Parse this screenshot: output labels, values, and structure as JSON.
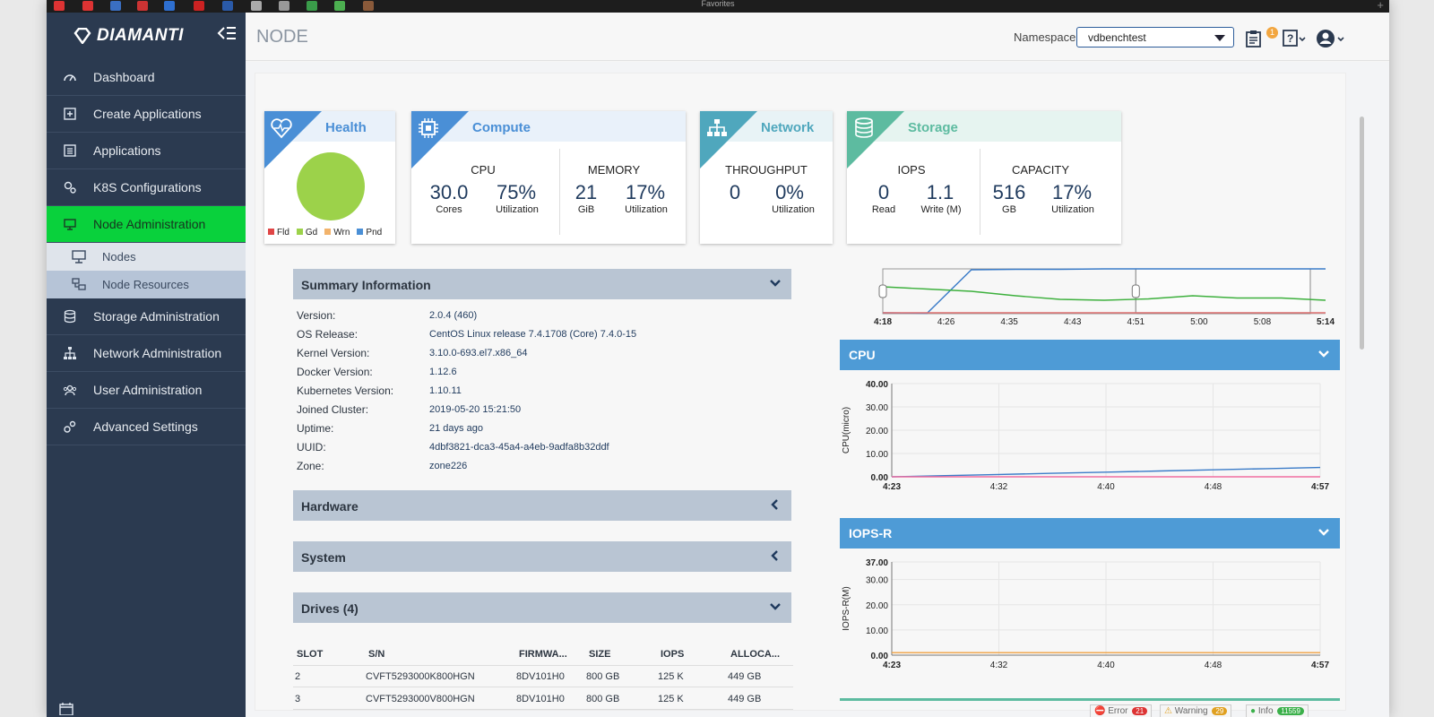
{
  "browser": {
    "favorites_label": "Favorites",
    "new_tab": "+"
  },
  "sidebar": {
    "logo": "DIAMANTI",
    "items": [
      {
        "label": "Dashboard",
        "icon": "speedometer-icon"
      },
      {
        "label": "Create Applications",
        "icon": "plus-square-icon"
      },
      {
        "label": "Applications",
        "icon": "list-icon"
      },
      {
        "label": "K8S Configurations",
        "icon": "gear-cluster-icon"
      },
      {
        "label": "Node Administration",
        "icon": "monitor-icon",
        "active": true
      },
      {
        "label": "Storage Administration",
        "icon": "database-icon"
      },
      {
        "label": "Network Administration",
        "icon": "network-icon"
      },
      {
        "label": "User Administration",
        "icon": "users-icon"
      },
      {
        "label": "Advanced Settings",
        "icon": "settings-icon"
      }
    ],
    "sub_items": [
      {
        "label": "Nodes",
        "icon": "node-icon"
      },
      {
        "label": "Node Resources",
        "icon": "resources-icon",
        "selected": true
      }
    ]
  },
  "header": {
    "title": "NODE",
    "namespace_label": "Namespace",
    "namespace_value": "vdbenchtest",
    "notification_count": "1"
  },
  "cards": {
    "health": {
      "title": "Health",
      "legend": [
        "Fld",
        "Gd",
        "Wrn",
        "Pnd"
      ],
      "legend_colors": [
        "#e04646",
        "#9cd24a",
        "#f2b36b",
        "#4a8fd6"
      ]
    },
    "compute": {
      "title": "Compute",
      "cpu_label": "CPU",
      "cpu_cores": "30.0",
      "cpu_cores_unit": "Cores",
      "cpu_util": "75%",
      "cpu_util_label": "Utilization",
      "mem_label": "MEMORY",
      "mem_value": "21",
      "mem_unit": "GiB",
      "mem_util": "17%",
      "mem_util_label": "Utilization"
    },
    "network": {
      "title": "Network",
      "tp_label": "THROUGHPUT",
      "tp_value": "0",
      "tp_util": "0%",
      "tp_util_label": "Utilization"
    },
    "storage": {
      "title": "Storage",
      "iops_label": "IOPS",
      "read_value": "0",
      "read_label": "Read",
      "write_value": "1.1",
      "write_label": "Write (M)",
      "cap_label": "CAPACITY",
      "cap_value": "516",
      "cap_unit": "GB",
      "cap_util": "17%",
      "cap_util_label": "Utilization"
    }
  },
  "summary": {
    "title": "Summary Information",
    "rows": [
      {
        "label": "Version:",
        "value": "2.0.4 (460)"
      },
      {
        "label": "OS Release:",
        "value": "CentOS Linux release 7.4.1708 (Core) 7.4.0-15"
      },
      {
        "label": "Kernel Version:",
        "value": "3.10.0-693.el7.x86_64"
      },
      {
        "label": "Docker Version:",
        "value": "1.12.6"
      },
      {
        "label": "Kubernetes Version:",
        "value": "1.10.11"
      },
      {
        "label": "Joined Cluster:",
        "value": "2019-05-20 15:21:50"
      },
      {
        "label": "Uptime:",
        "value": "21 days ago"
      },
      {
        "label": "UUID:",
        "value": "4dbf3821-dca3-45a4-a4eb-9adfa8b32ddf"
      },
      {
        "label": "Zone:",
        "value": "zone226"
      }
    ]
  },
  "sections": {
    "hardware": "Hardware",
    "system": "System",
    "drives": "Drives (4)"
  },
  "drives_table": {
    "headers": [
      "SLOT",
      "S/N",
      "FIRMWA...",
      "SIZE",
      "IOPS",
      "ALLOCA..."
    ],
    "rows": [
      [
        "2",
        "CVFT5293000K800HGN",
        "8DV101H0",
        "800 GB",
        "125 K",
        "449 GB"
      ],
      [
        "3",
        "CVFT5293000V800HGN",
        "8DV101H0",
        "800 GB",
        "125 K",
        "449 GB"
      ]
    ]
  },
  "chart_data": [
    {
      "type": "line",
      "title": "",
      "x_ticks": [
        "4:18",
        "4:26",
        "4:35",
        "4:43",
        "4:51",
        "5:00",
        "5:08",
        "5:14"
      ],
      "series": [
        {
          "color": "#3a7bc8",
          "values": [
            2,
            1,
            98,
            99,
            99,
            100,
            100,
            100,
            100,
            100,
            100
          ]
        },
        {
          "color": "#3db03d",
          "values": [
            60,
            55,
            50,
            40,
            32,
            30,
            33,
            40,
            35,
            35,
            30
          ]
        },
        {
          "color": "#e07070",
          "values": [
            2,
            2,
            2,
            2,
            2,
            2,
            2,
            2,
            2,
            2,
            2
          ]
        }
      ],
      "selection_range": [
        "4:18",
        "4:51"
      ]
    },
    {
      "type": "line",
      "title": "CPU",
      "ylabel": "CPU(micro)",
      "ylim": [
        0,
        40
      ],
      "y_ticks": [
        "0.00",
        "10.00",
        "20.00",
        "30.00",
        "40.00"
      ],
      "x_ticks": [
        "4:23",
        "4:32",
        "4:40",
        "4:48",
        "4:57"
      ],
      "series": [
        {
          "color": "#3a7bc8",
          "values": [
            0,
            0.5,
            1,
            1.5,
            2,
            2.5,
            3,
            3.5,
            4
          ]
        },
        {
          "color": "#f06fa0",
          "values": [
            0,
            0,
            0,
            0,
            0,
            0,
            0,
            0,
            0
          ]
        }
      ]
    },
    {
      "type": "line",
      "title": "IOPS-R",
      "ylabel": "IOPS-R(M)",
      "ylim": [
        0,
        37
      ],
      "y_ticks": [
        "0.00",
        "10.00",
        "20.00",
        "30.00",
        "37.00"
      ],
      "x_ticks": [
        "4:23",
        "4:32",
        "4:40",
        "4:48",
        "4:57"
      ],
      "series": [
        {
          "color": "#f0a040",
          "values": [
            1,
            1,
            1,
            1,
            1,
            1,
            1,
            1,
            1
          ]
        }
      ]
    }
  ],
  "status": {
    "error_label": "Error",
    "error_count": "21",
    "warning_label": "Warning",
    "warning_count": "29",
    "info_label": "Info",
    "info_count": "11559"
  }
}
